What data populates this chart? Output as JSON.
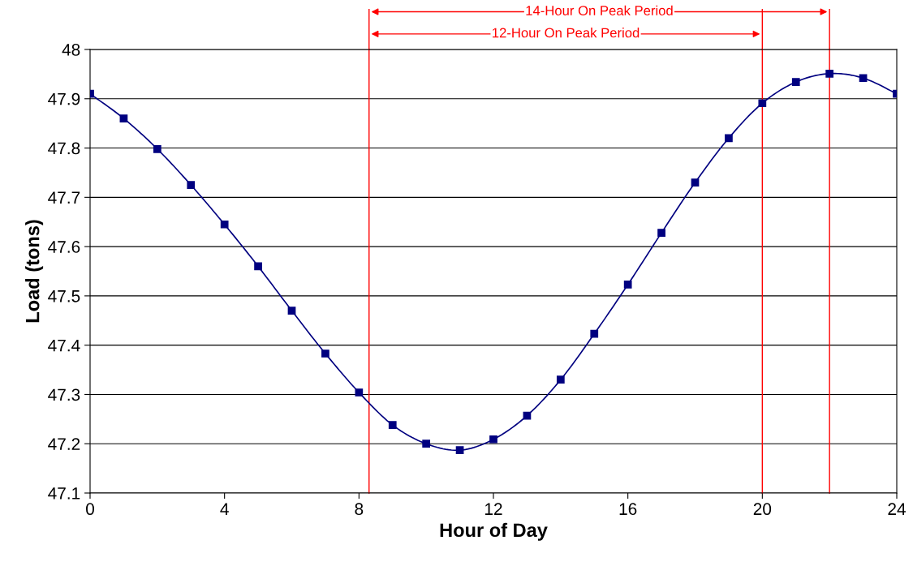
{
  "chart_data": {
    "type": "line",
    "xlabel": "Hour of Day",
    "ylabel": "Load (tons)",
    "x": [
      0,
      1,
      2,
      3,
      4,
      5,
      6,
      7,
      8,
      9,
      10,
      11,
      12,
      13,
      14,
      15,
      16,
      17,
      18,
      19,
      20,
      21,
      22,
      23,
      24
    ],
    "series": [
      {
        "color": "#000080",
        "values": [
          47.91,
          47.86,
          47.798,
          47.725,
          47.645,
          47.56,
          47.47,
          47.383,
          47.304,
          47.238,
          47.2,
          47.187,
          47.209,
          47.257,
          47.33,
          47.423,
          47.523,
          47.628,
          47.73,
          47.82,
          47.891,
          47.934,
          47.951,
          47.942,
          47.91
        ]
      }
    ],
    "xlim": [
      0,
      24
    ],
    "xticks": [
      0,
      4,
      8,
      12,
      16,
      20,
      24
    ],
    "ylim": [
      47.1,
      48
    ],
    "yticks": [
      47.1,
      47.2,
      47.3,
      47.4,
      47.5,
      47.6,
      47.7,
      47.8,
      47.9,
      48
    ],
    "ref_lines": [
      {
        "axis": "x",
        "value": 8.3,
        "color": "#ff0000"
      },
      {
        "axis": "x",
        "value": 20,
        "color": "#ff0000"
      },
      {
        "axis": "x",
        "value": 22,
        "color": "#ff0000"
      }
    ],
    "annotations": [
      "14-Hour On Peak Period",
      "12-Hour On Peak Period"
    ],
    "grid": "y",
    "marker": "square",
    "line_style": "solid",
    "legend": false
  }
}
